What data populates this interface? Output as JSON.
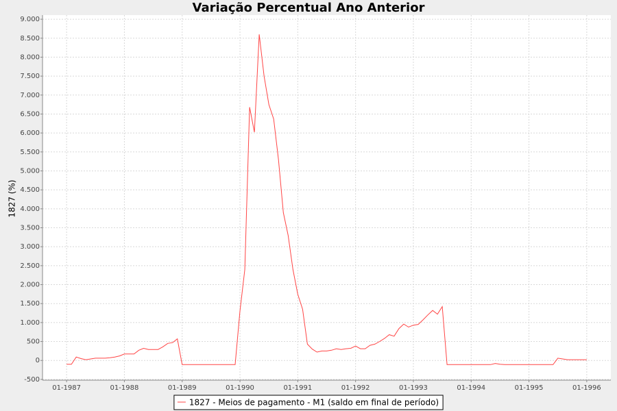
{
  "chart_data": {
    "type": "line",
    "title": "Variação Percentual Ano Anterior",
    "ylabel": "1827 (%)",
    "grid": true,
    "legend": "bottom",
    "x": [
      "01-1987",
      "02-1987",
      "03-1987",
      "04-1987",
      "05-1987",
      "06-1987",
      "07-1987",
      "08-1987",
      "09-1987",
      "10-1987",
      "11-1987",
      "12-1987",
      "01-1988",
      "02-1988",
      "03-1988",
      "04-1988",
      "05-1988",
      "06-1988",
      "07-1988",
      "08-1988",
      "09-1988",
      "10-1988",
      "11-1988",
      "12-1988",
      "01-1989",
      "02-1989",
      "03-1989",
      "04-1989",
      "05-1989",
      "06-1989",
      "07-1989",
      "08-1989",
      "09-1989",
      "10-1989",
      "11-1989",
      "12-1989",
      "01-1990",
      "02-1990",
      "03-1990",
      "04-1990",
      "05-1990",
      "06-1990",
      "07-1990",
      "08-1990",
      "09-1990",
      "10-1990",
      "11-1990",
      "12-1990",
      "01-1991",
      "02-1991",
      "03-1991",
      "04-1991",
      "05-1991",
      "06-1991",
      "07-1991",
      "08-1991",
      "09-1991",
      "10-1991",
      "11-1991",
      "12-1991",
      "01-1992",
      "02-1992",
      "03-1992",
      "04-1992",
      "05-1992",
      "06-1992",
      "07-1992",
      "08-1992",
      "09-1992",
      "10-1992",
      "11-1992",
      "12-1992",
      "01-1993",
      "02-1993",
      "03-1993",
      "04-1993",
      "05-1993",
      "06-1993",
      "07-1993",
      "08-1993",
      "09-1993",
      "10-1993",
      "11-1993",
      "12-1993",
      "01-1994",
      "02-1994",
      "03-1994",
      "04-1994",
      "05-1994",
      "06-1994",
      "07-1994",
      "08-1994",
      "09-1994",
      "10-1994",
      "11-1994",
      "12-1994",
      "01-1995",
      "02-1995",
      "03-1995",
      "04-1995",
      "05-1995",
      "06-1995",
      "07-1995",
      "08-1995",
      "09-1995",
      "10-1995",
      "11-1995",
      "12-1995",
      "01-1996"
    ],
    "series": [
      {
        "name": "1827 - Meios de pagamento - M1 (saldo em final de período)",
        "color": "#ff4444",
        "values": [
          -100,
          -100,
          90,
          50,
          20,
          40,
          60,
          60,
          60,
          70,
          90,
          120,
          170,
          170,
          170,
          270,
          320,
          290,
          290,
          290,
          360,
          450,
          470,
          570,
          -110,
          -110,
          -110,
          -110,
          -110,
          -110,
          -110,
          -110,
          -110,
          -110,
          -110,
          -110,
          1300,
          2400,
          6680,
          6020,
          8600,
          7500,
          6750,
          6370,
          5300,
          3900,
          3300,
          2400,
          1750,
          1350,
          430,
          300,
          220,
          250,
          250,
          270,
          310,
          290,
          310,
          320,
          380,
          310,
          310,
          400,
          430,
          500,
          580,
          680,
          640,
          840,
          960,
          880,
          930,
          950,
          1070,
          1200,
          1320,
          1220,
          1420,
          -110,
          -110,
          -110,
          -110,
          -110,
          -110,
          -110,
          -110,
          -110,
          -110,
          -80,
          -100,
          -110,
          -110,
          -110,
          -110,
          -110,
          -110,
          -110,
          -110,
          -110,
          -110,
          -110,
          60,
          40,
          20,
          20,
          20,
          20,
          20
        ]
      }
    ],
    "xlim": [
      "08-1986",
      "06-1996"
    ],
    "xticks": [
      "01-1987",
      "01-1988",
      "01-1989",
      "01-1990",
      "01-1991",
      "01-1992",
      "01-1993",
      "01-1994",
      "01-1995",
      "01-1996"
    ],
    "ylim": [
      -520,
      9110
    ],
    "yticks": [
      -500,
      0,
      {
        "value": 500,
        "label": "500"
      },
      {
        "value": 1000,
        "label": "1.000"
      },
      {
        "value": 1500,
        "label": "1.500"
      },
      {
        "value": 2000,
        "label": "2.000"
      },
      {
        "value": 2500,
        "label": "2.500"
      },
      {
        "value": 3000,
        "label": "3.000"
      },
      {
        "value": 3500,
        "label": "3.500"
      },
      {
        "value": 4000,
        "label": "4.000"
      },
      {
        "value": 4500,
        "label": "4.500"
      },
      {
        "value": 5000,
        "label": "5.000"
      },
      {
        "value": 5500,
        "label": "5.500"
      },
      {
        "value": 6000,
        "label": "6.000"
      },
      {
        "value": 6500,
        "label": "6.500"
      },
      {
        "value": 7000,
        "label": "7.000"
      },
      {
        "value": 7500,
        "label": "7.500"
      },
      {
        "value": 8000,
        "label": "8.000"
      },
      {
        "value": 8500,
        "label": "8.500"
      },
      {
        "value": 9000,
        "label": "9.000"
      }
    ]
  }
}
